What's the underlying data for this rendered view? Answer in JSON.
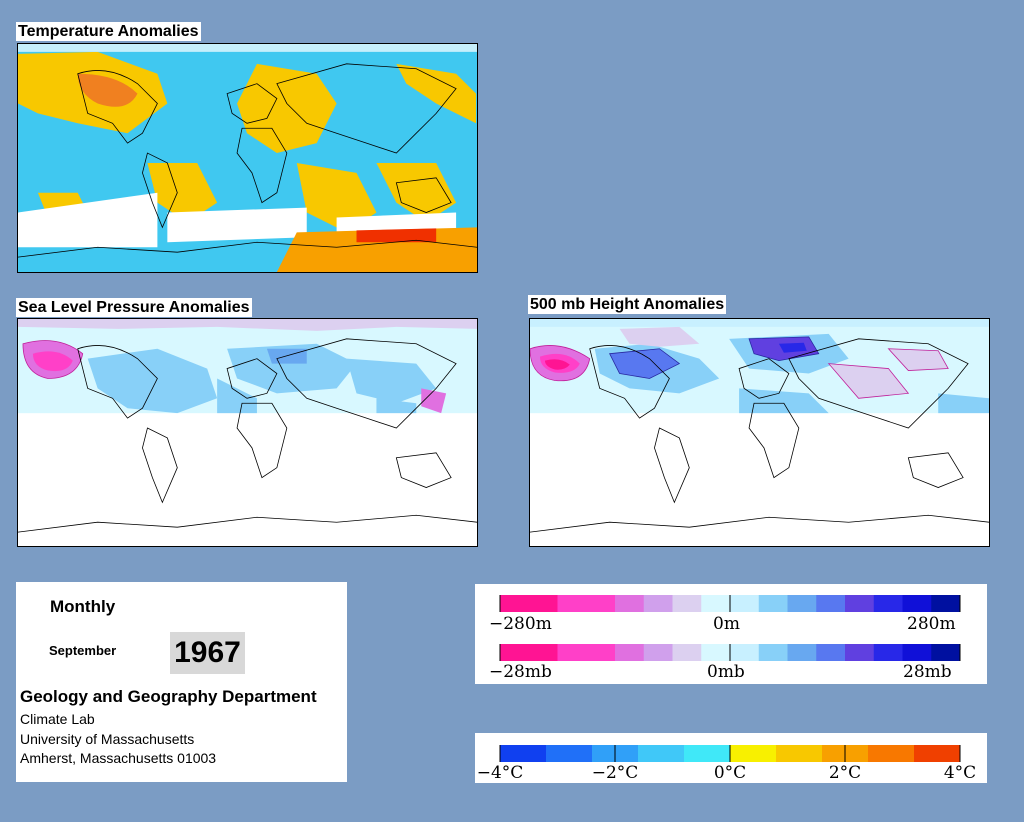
{
  "titles": {
    "temperature": "Temperature Anomalies",
    "slp": "Sea Level Pressure Anomalies",
    "height500": "500 mb Height Anomalies"
  },
  "info": {
    "period": "Monthly",
    "month": "September",
    "year": "1967",
    "department": "Geology and Geography Department",
    "lab": "Climate Lab",
    "university": "University of Massachusetts",
    "address": "Amherst, Massachusetts 01003"
  },
  "legend_height": {
    "left": "−280m",
    "center": "0m",
    "right": "280m",
    "colors": [
      "#ff1493",
      "#ff1493",
      "#ff40c8",
      "#ff40c8",
      "#e070e0",
      "#d0a0ec",
      "#dcd0f0",
      "#d8f8ff",
      "#c8f0ff",
      "#88d0f8",
      "#68a8f0",
      "#5878f0",
      "#6040e0",
      "#2828e8",
      "#1010d8",
      "#0010a0"
    ]
  },
  "legend_pressure": {
    "left": "−28mb",
    "center": "0mb",
    "right": "28mb",
    "colors": [
      "#ff1493",
      "#ff1493",
      "#ff40c8",
      "#ff40c8",
      "#e070e0",
      "#d0a0ec",
      "#dcd0f0",
      "#d8f8ff",
      "#c8f0ff",
      "#88d0f8",
      "#68a8f0",
      "#5878f0",
      "#6040e0",
      "#2828e8",
      "#1010d8",
      "#0010a0"
    ]
  },
  "legend_temperature": {
    "labels": [
      "−4°C",
      "−2°C",
      "0°C",
      "2°C",
      "4°C"
    ],
    "colors_negative": [
      "#1040f0",
      "#2070f8",
      "#30a0f8",
      "#40c8f8",
      "#40e8f8"
    ],
    "colors_positive": [
      "#f8f000",
      "#f8c800",
      "#f8a000",
      "#f87800",
      "#f04000"
    ]
  }
}
